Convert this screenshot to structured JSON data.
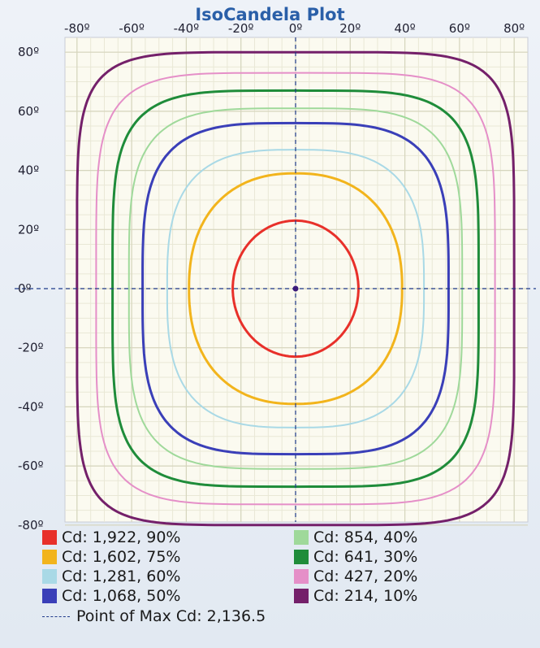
{
  "chart_data": {
    "type": "line",
    "title": "IsoCandela Plot",
    "xlabel": "",
    "ylabel": "",
    "x_ticks": [
      "-80º",
      "-60º",
      "-40º",
      "-20º",
      "0º",
      "20º",
      "40º",
      "60º",
      "80º"
    ],
    "y_ticks": [
      "80º",
      "60º",
      "40º",
      "20º",
      "0º",
      "-20º",
      "-40º",
      "-60º",
      "-80º"
    ],
    "xlim": [
      -85,
      85
    ],
    "ylim": [
      -86,
      85
    ],
    "grid": true,
    "series": [
      {
        "name": "Cd: 1,922, 90%",
        "color": "#e8302a",
        "radius_deg": 23,
        "squareness": 2.0
      },
      {
        "name": "Cd: 1,602, 75%",
        "color": "#f2b41c",
        "radius_deg": 39,
        "squareness": 2.3
      },
      {
        "name": "Cd: 1,281, 60%",
        "color": "#a9d9e6",
        "radius_deg": 47,
        "squareness": 3.0
      },
      {
        "name": "Cd: 1,068, 50%",
        "color": "#3a3fb8",
        "radius_deg": 56,
        "squareness": 3.6
      },
      {
        "name": "Cd: 854, 40%",
        "color": "#9fd99a",
        "radius_deg": 61,
        "squareness": 4.0
      },
      {
        "name": "Cd: 641, 30%",
        "color": "#1f8c3a",
        "radius_deg": 67,
        "squareness": 4.5
      },
      {
        "name": "Cd: 427, 20%",
        "color": "#e58fc8",
        "radius_deg": 73,
        "squareness": 5.0
      },
      {
        "name": "Cd: 214, 10%",
        "color": "#74206a",
        "radius_deg": 80,
        "squareness": 6.0
      }
    ],
    "max_point": {
      "label": "Point of Max Cd: 2,136.5",
      "x": 0,
      "y": 0
    }
  }
}
